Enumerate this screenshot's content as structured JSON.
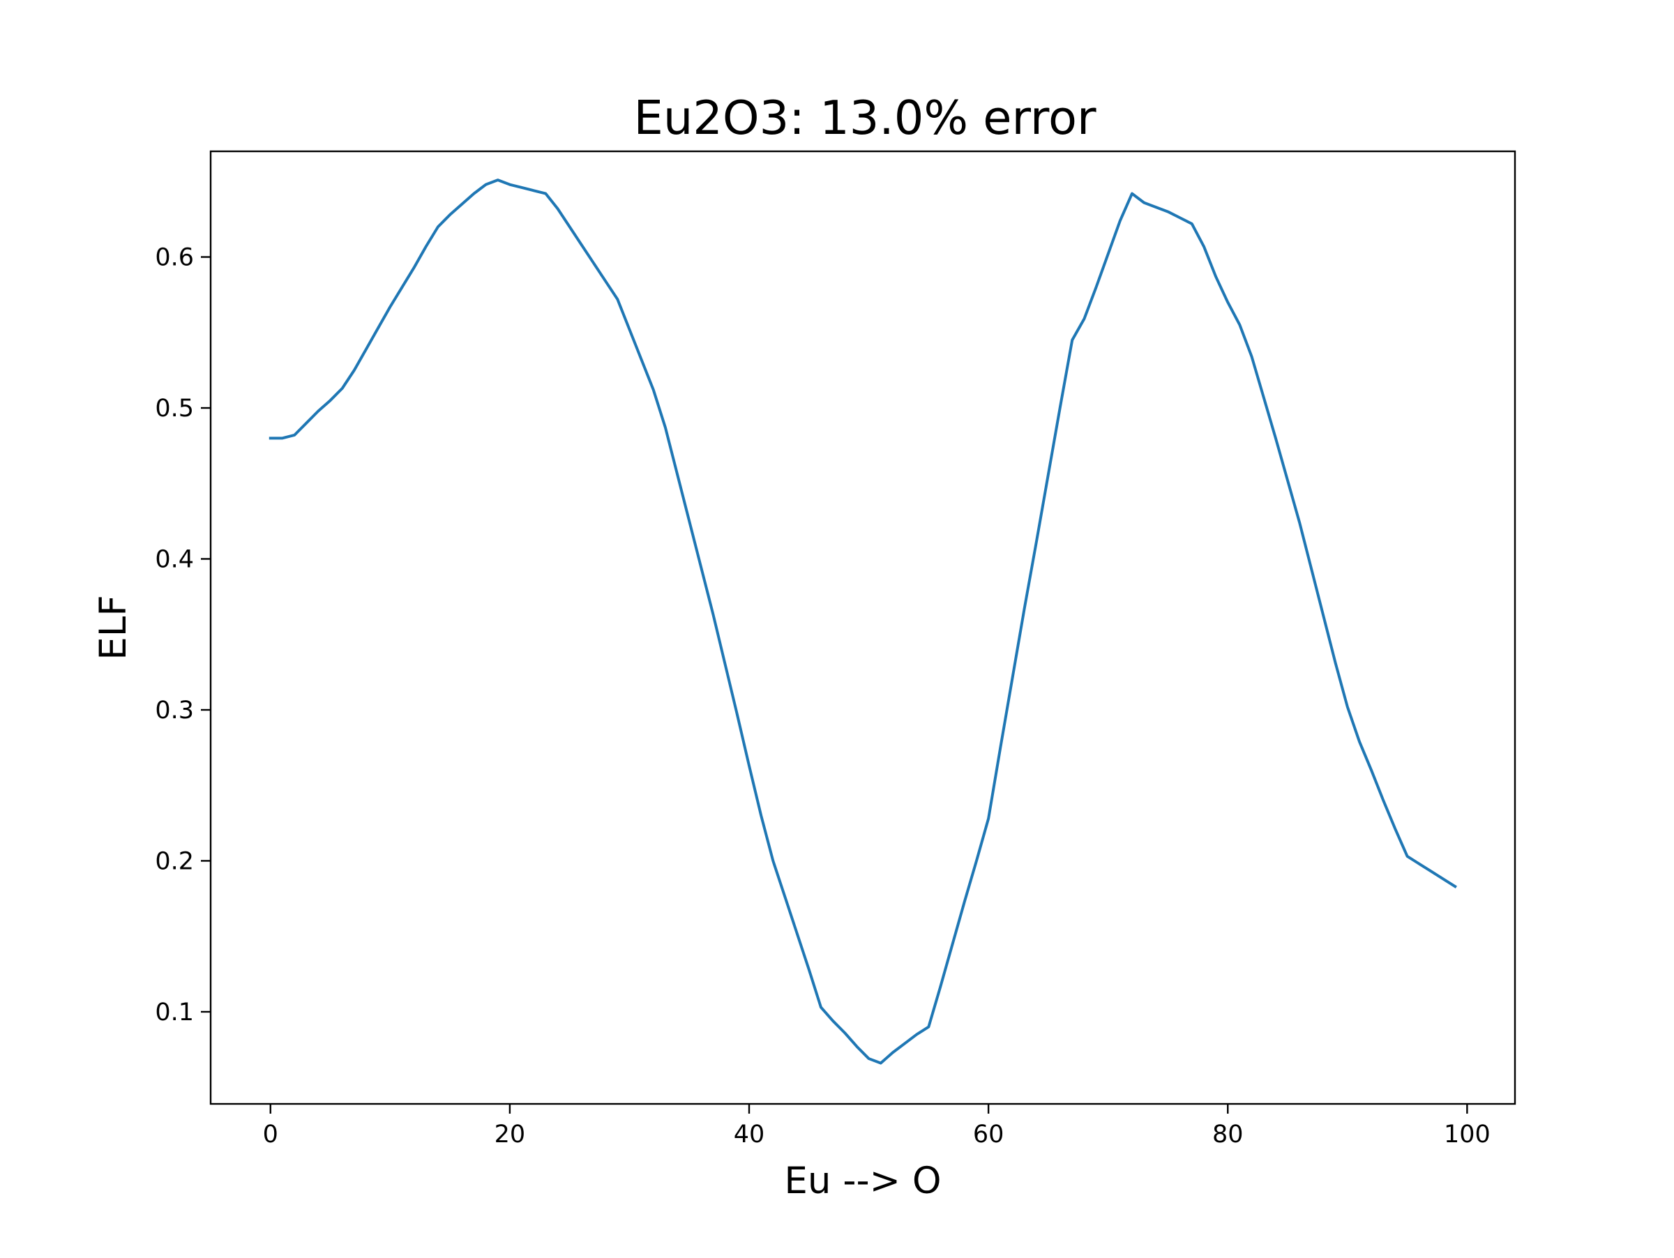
{
  "chart_data": {
    "type": "line",
    "title": "Eu2O3: 13.0% error",
    "xlabel": "Eu --> O",
    "ylabel": "ELF",
    "xlim": [
      -5,
      104
    ],
    "ylim": [
      0.039,
      0.67
    ],
    "xticks": [
      0,
      20,
      40,
      60,
      80,
      100
    ],
    "yticks": [
      0.1,
      0.2,
      0.3,
      0.4,
      0.5,
      0.6
    ],
    "xtick_labels": [
      "0",
      "20",
      "40",
      "60",
      "80",
      "100"
    ],
    "ytick_labels": [
      "0.1",
      "0.2",
      "0.3",
      "0.4",
      "0.5",
      "0.6"
    ],
    "grid": false,
    "line_color": "#1f77b4",
    "series": [
      {
        "x": [
          0,
          1,
          2,
          3,
          4,
          5,
          6,
          7,
          8,
          9,
          10,
          11,
          12,
          13,
          14,
          15,
          16,
          17,
          18,
          19,
          20,
          21,
          22,
          23,
          24,
          25,
          26,
          27,
          28,
          29,
          30,
          31,
          32,
          33,
          34,
          35,
          36,
          37,
          38,
          39,
          40,
          41,
          42,
          43,
          44,
          45,
          46,
          47,
          48,
          49,
          50,
          51,
          52,
          53,
          54,
          55,
          56,
          57,
          58,
          59,
          60,
          61,
          62,
          63,
          64,
          65,
          66,
          67,
          68,
          69,
          70,
          71,
          72,
          73,
          74,
          75,
          76,
          77,
          78,
          79,
          80,
          81,
          82,
          83,
          84,
          85,
          86,
          87,
          88,
          89,
          90,
          91,
          92,
          93,
          94,
          95,
          96,
          97,
          98,
          99
        ],
        "values": [
          0.48,
          0.48,
          0.482,
          0.49,
          0.498,
          0.505,
          0.513,
          0.525,
          0.539,
          0.553,
          0.567,
          0.58,
          0.593,
          0.607,
          0.62,
          0.628,
          0.635,
          0.642,
          0.648,
          0.651,
          0.648,
          0.646,
          0.644,
          0.642,
          0.632,
          0.62,
          0.608,
          0.596,
          0.584,
          0.572,
          0.552,
          0.532,
          0.512,
          0.487,
          0.456,
          0.425,
          0.394,
          0.363,
          0.33,
          0.297,
          0.263,
          0.23,
          0.2,
          0.176,
          0.152,
          0.128,
          0.103,
          0.094,
          0.086,
          0.077,
          0.069,
          0.066,
          0.073,
          0.079,
          0.085,
          0.09,
          0.117,
          0.145,
          0.173,
          0.2,
          0.228,
          0.275,
          0.321,
          0.367,
          0.411,
          0.456,
          0.501,
          0.545,
          0.559,
          0.58,
          0.602,
          0.624,
          0.642,
          0.636,
          0.633,
          0.63,
          0.626,
          0.622,
          0.607,
          0.587,
          0.57,
          0.555,
          0.534,
          0.507,
          0.48,
          0.452,
          0.424,
          0.393,
          0.362,
          0.331,
          0.302,
          0.279,
          0.26,
          0.24,
          0.221,
          0.203,
          0.198,
          0.193,
          0.188,
          0.183
        ]
      }
    ]
  }
}
